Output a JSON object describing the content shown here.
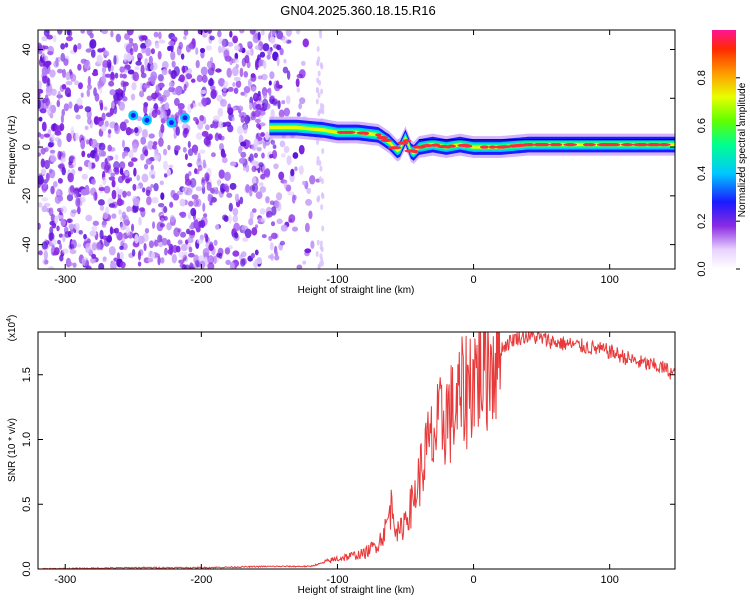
{
  "title": "GN04.2025.360.18.15.R16",
  "chart_data": [
    {
      "type": "heatmap",
      "xlabel": "Height of straight line (km)",
      "ylabel": "Frequency (Hz)",
      "xlim": [
        -320,
        148
      ],
      "ylim": [
        -50,
        48
      ],
      "x_ticks": [
        -300,
        -200,
        -100,
        0,
        100
      ],
      "y_ticks": [
        -40,
        -20,
        0,
        20,
        40
      ],
      "colorbar": {
        "label": "Normalized spectral amplitude",
        "ticks": [
          0.0,
          0.2,
          0.4,
          0.6,
          0.8
        ],
        "range": [
          0,
          1
        ]
      },
      "noise_region_x": [
        -320,
        -112
      ],
      "signal_line": {
        "x": [
          -150,
          -130,
          -110,
          -100,
          -85,
          -70,
          -62,
          -55,
          -50,
          -45,
          -40,
          -30,
          -20,
          -10,
          0,
          20,
          40,
          60,
          80,
          100,
          120,
          148
        ],
        "y": [
          8,
          8,
          7,
          6,
          6,
          5,
          2,
          -2,
          4,
          -3,
          0,
          1,
          0,
          1,
          0,
          0,
          1,
          1,
          1,
          1,
          1,
          1
        ]
      },
      "residual_line_y": 3
    },
    {
      "type": "line",
      "xlabel": "Height of straight line (km)",
      "ylabel": "SNR (10 * v/v)",
      "y_scale_label": "(x10",
      "y_scale_exponent": "4",
      "xlim": [
        -320,
        148
      ],
      "ylim": [
        0,
        1.83
      ],
      "x_ticks": [
        -300,
        -200,
        -100,
        0,
        100
      ],
      "y_ticks": [
        0.0,
        0.5,
        1.0,
        1.5
      ],
      "series": [
        {
          "color": "#e83a3a",
          "x": [
            -320,
            -250,
            -200,
            -150,
            -120,
            -110,
            -100,
            -90,
            -80,
            -70,
            -65,
            -60,
            -55,
            -50,
            -45,
            -40,
            -35,
            -30,
            -25,
            -20,
            -15,
            -10,
            -5,
            0,
            10,
            20,
            30,
            40,
            50,
            60,
            80,
            100,
            120,
            140,
            148
          ],
          "y": [
            0.0,
            0.01,
            0.01,
            0.02,
            0.02,
            0.05,
            0.08,
            0.1,
            0.12,
            0.2,
            0.3,
            0.5,
            0.25,
            0.4,
            0.5,
            0.7,
            0.9,
            1.0,
            1.1,
            1.2,
            1.2,
            1.3,
            1.4,
            1.5,
            1.6,
            1.7,
            1.78,
            1.8,
            1.78,
            1.75,
            1.72,
            1.68,
            1.6,
            1.55,
            1.5
          ]
        }
      ]
    }
  ]
}
